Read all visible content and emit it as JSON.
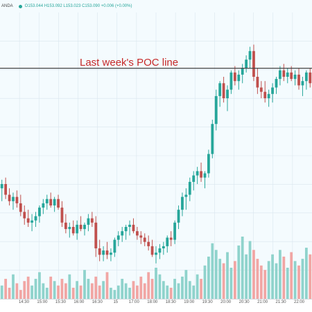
{
  "header": {
    "symbol_fragment": "ANDA",
    "ohlc": "O153.044 H153.092 L153.023 C153.090 +0.006 (+0.00%)"
  },
  "annotation": {
    "label": "Last week's POC line"
  },
  "colors": {
    "up": "#26a69a",
    "down": "#c0504d",
    "up_vol": "#8fd3cc",
    "down_vol": "#f1a6a4",
    "poc_line": "#444444",
    "grid": "#d9e6ee"
  },
  "chart_data": {
    "type": "candlestick",
    "title": "",
    "x_ticks": [
      "",
      "14:30",
      "15:00",
      "15:30",
      "16:00",
      "16:30",
      "15",
      "17:00",
      "18:00",
      "18:30",
      "19:00",
      "19:30",
      "20:00",
      "20:30",
      "21:00",
      "21:30",
      "22:00"
    ],
    "candles": [
      {
        "o": 30,
        "h": 34,
        "l": 24,
        "c": 32
      },
      {
        "o": 32,
        "h": 35,
        "l": 25,
        "c": 27
      },
      {
        "o": 27,
        "h": 30,
        "l": 22,
        "c": 24
      },
      {
        "o": 24,
        "h": 28,
        "l": 20,
        "c": 26
      },
      {
        "o": 26,
        "h": 29,
        "l": 21,
        "c": 23
      },
      {
        "o": 23,
        "h": 27,
        "l": 17,
        "c": 19
      },
      {
        "o": 19,
        "h": 22,
        "l": 13,
        "c": 16
      },
      {
        "o": 16,
        "h": 20,
        "l": 12,
        "c": 14
      },
      {
        "o": 14,
        "h": 18,
        "l": 10,
        "c": 15
      },
      {
        "o": 15,
        "h": 19,
        "l": 12,
        "c": 17
      },
      {
        "o": 17,
        "h": 22,
        "l": 14,
        "c": 21
      },
      {
        "o": 21,
        "h": 25,
        "l": 18,
        "c": 23
      },
      {
        "o": 23,
        "h": 27,
        "l": 20,
        "c": 25
      },
      {
        "o": 25,
        "h": 28,
        "l": 21,
        "c": 22
      },
      {
        "o": 22,
        "h": 26,
        "l": 19,
        "c": 25
      },
      {
        "o": 25,
        "h": 27,
        "l": 20,
        "c": 21
      },
      {
        "o": 21,
        "h": 24,
        "l": 12,
        "c": 14
      },
      {
        "o": 14,
        "h": 18,
        "l": 9,
        "c": 11
      },
      {
        "o": 11,
        "h": 14,
        "l": 7,
        "c": 12
      },
      {
        "o": 12,
        "h": 15,
        "l": 8,
        "c": 9
      },
      {
        "o": 9,
        "h": 15,
        "l": 6,
        "c": 13
      },
      {
        "o": 13,
        "h": 17,
        "l": 10,
        "c": 11
      },
      {
        "o": 11,
        "h": 14,
        "l": 8,
        "c": 13
      },
      {
        "o": 13,
        "h": 18,
        "l": 10,
        "c": 16
      },
      {
        "o": 16,
        "h": 19,
        "l": 12,
        "c": 14
      },
      {
        "o": 14,
        "h": 17,
        "l": -2,
        "c": 2
      },
      {
        "o": 2,
        "h": 6,
        "l": -4,
        "c": -1
      },
      {
        "o": -1,
        "h": 3,
        "l": -4,
        "c": 1
      },
      {
        "o": 1,
        "h": 5,
        "l": -3,
        "c": -1
      },
      {
        "o": -1,
        "h": 2,
        "l": -4,
        "c": 0
      },
      {
        "o": 0,
        "h": 7,
        "l": -2,
        "c": 6
      },
      {
        "o": 6,
        "h": 10,
        "l": 3,
        "c": 8
      },
      {
        "o": 8,
        "h": 12,
        "l": 5,
        "c": 10
      },
      {
        "o": 10,
        "h": 13,
        "l": 6,
        "c": 12
      },
      {
        "o": 12,
        "h": 15,
        "l": 8,
        "c": 13
      },
      {
        "o": 13,
        "h": 16,
        "l": 9,
        "c": 10
      },
      {
        "o": 10,
        "h": 12,
        "l": 6,
        "c": 8
      },
      {
        "o": 8,
        "h": 10,
        "l": 4,
        "c": 7
      },
      {
        "o": 7,
        "h": 9,
        "l": 3,
        "c": 5
      },
      {
        "o": 5,
        "h": 8,
        "l": 1,
        "c": 3
      },
      {
        "o": 3,
        "h": 6,
        "l": -2,
        "c": -1
      },
      {
        "o": -1,
        "h": 3,
        "l": -5,
        "c": 0
      },
      {
        "o": 0,
        "h": 4,
        "l": -3,
        "c": 2
      },
      {
        "o": 2,
        "h": 5,
        "l": -1,
        "c": 3
      },
      {
        "o": 3,
        "h": 8,
        "l": 0,
        "c": 7
      },
      {
        "o": 7,
        "h": 10,
        "l": 3,
        "c": 6
      },
      {
        "o": 6,
        "h": 15,
        "l": 4,
        "c": 14
      },
      {
        "o": 14,
        "h": 22,
        "l": 11,
        "c": 20
      },
      {
        "o": 20,
        "h": 28,
        "l": 17,
        "c": 26
      },
      {
        "o": 26,
        "h": 30,
        "l": 20,
        "c": 27
      },
      {
        "o": 27,
        "h": 35,
        "l": 24,
        "c": 33
      },
      {
        "o": 33,
        "h": 38,
        "l": 29,
        "c": 36
      },
      {
        "o": 36,
        "h": 40,
        "l": 32,
        "c": 38
      },
      {
        "o": 38,
        "h": 42,
        "l": 33,
        "c": 35
      },
      {
        "o": 35,
        "h": 38,
        "l": 30,
        "c": 37
      },
      {
        "o": 37,
        "h": 48,
        "l": 35,
        "c": 46
      },
      {
        "o": 46,
        "h": 62,
        "l": 44,
        "c": 60
      },
      {
        "o": 60,
        "h": 76,
        "l": 57,
        "c": 73
      },
      {
        "o": 73,
        "h": 80,
        "l": 68,
        "c": 79
      },
      {
        "o": 79,
        "h": 82,
        "l": 70,
        "c": 72
      },
      {
        "o": 72,
        "h": 78,
        "l": 66,
        "c": 76
      },
      {
        "o": 76,
        "h": 85,
        "l": 74,
        "c": 84
      },
      {
        "o": 84,
        "h": 87,
        "l": 78,
        "c": 80
      },
      {
        "o": 80,
        "h": 85,
        "l": 76,
        "c": 83
      },
      {
        "o": 83,
        "h": 88,
        "l": 79,
        "c": 86
      },
      {
        "o": 86,
        "h": 92,
        "l": 84,
        "c": 90
      },
      {
        "o": 90,
        "h": 96,
        "l": 86,
        "c": 94
      },
      {
        "o": 94,
        "h": 97,
        "l": 80,
        "c": 82
      },
      {
        "o": 82,
        "h": 86,
        "l": 74,
        "c": 77
      },
      {
        "o": 77,
        "h": 80,
        "l": 72,
        "c": 75
      },
      {
        "o": 75,
        "h": 80,
        "l": 70,
        "c": 72
      },
      {
        "o": 72,
        "h": 76,
        "l": 68,
        "c": 74
      },
      {
        "o": 74,
        "h": 79,
        "l": 70,
        "c": 77
      },
      {
        "o": 77,
        "h": 82,
        "l": 74,
        "c": 81
      },
      {
        "o": 81,
        "h": 87,
        "l": 78,
        "c": 85
      },
      {
        "o": 85,
        "h": 88,
        "l": 80,
        "c": 82
      },
      {
        "o": 82,
        "h": 86,
        "l": 79,
        "c": 84
      },
      {
        "o": 84,
        "h": 87,
        "l": 80,
        "c": 81
      },
      {
        "o": 81,
        "h": 85,
        "l": 78,
        "c": 83
      },
      {
        "o": 83,
        "h": 86,
        "l": 76,
        "c": 78
      },
      {
        "o": 78,
        "h": 82,
        "l": 73,
        "c": 80
      },
      {
        "o": 80,
        "h": 85,
        "l": 76,
        "c": 84
      },
      {
        "o": 84,
        "h": 86,
        "l": 77,
        "c": 79
      }
    ],
    "volumes": [
      6,
      9,
      5,
      11,
      7,
      4,
      8,
      10,
      6,
      9,
      12,
      7,
      5,
      10,
      8,
      6,
      9,
      7,
      11,
      5,
      8,
      6,
      13,
      9,
      7,
      10,
      6,
      8,
      12,
      5,
      4,
      6,
      9,
      7,
      5,
      8,
      6,
      10,
      7,
      12,
      9,
      14,
      11,
      8,
      6,
      5,
      9,
      7,
      10,
      13,
      8,
      6,
      11,
      9,
      15,
      19,
      25,
      22,
      18,
      16,
      21,
      14,
      17,
      24,
      28,
      20,
      26,
      22,
      18,
      15,
      13,
      17,
      20,
      16,
      22,
      19,
      14,
      21,
      17,
      15,
      18,
      23,
      20
    ],
    "poc_level": 86,
    "ylim": [
      -8,
      112
    ]
  }
}
